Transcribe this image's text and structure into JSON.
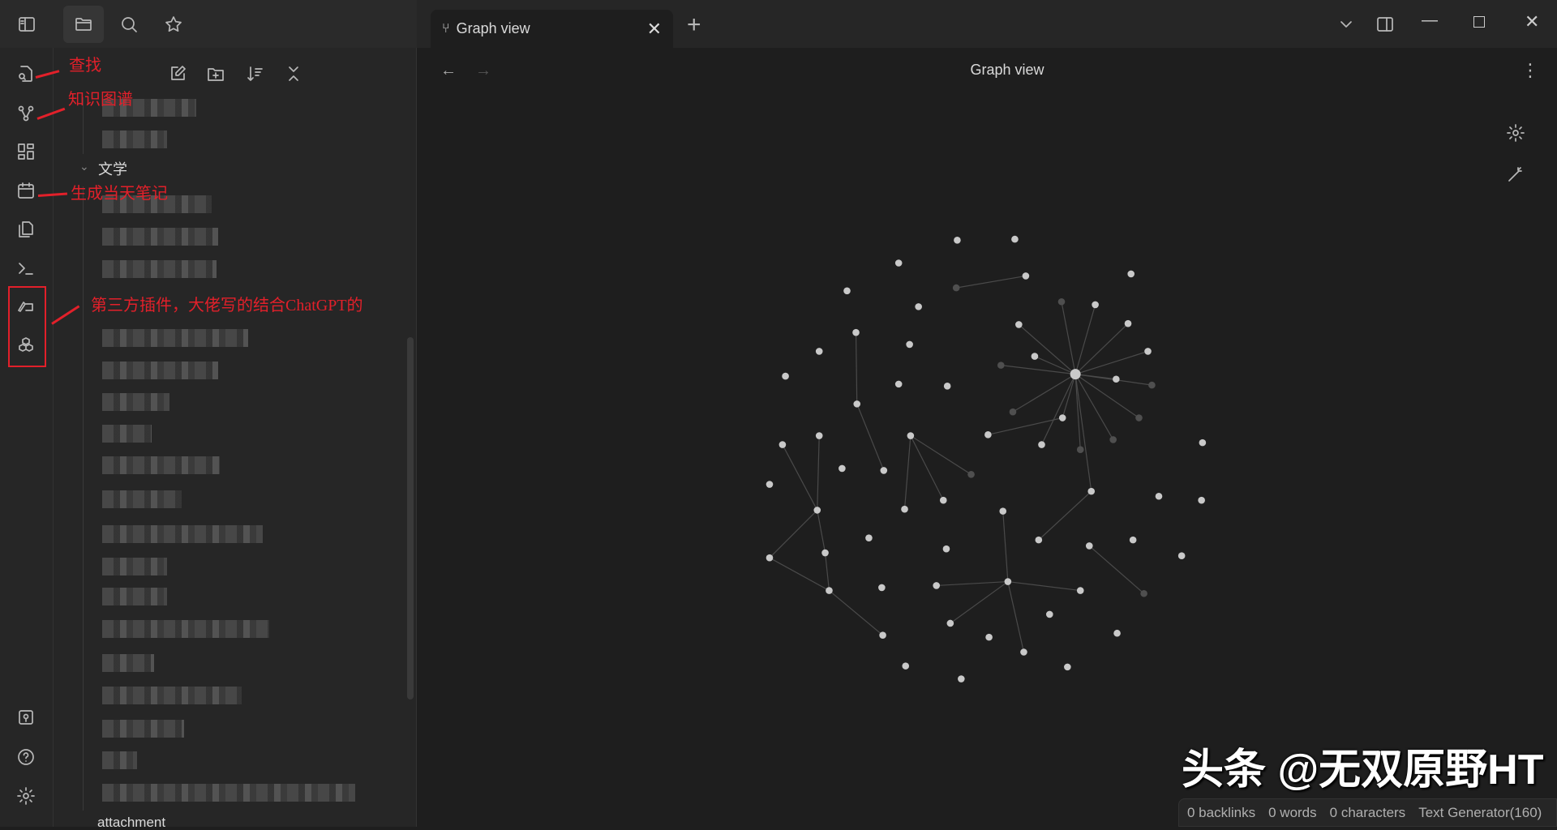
{
  "top": {
    "tab_title": "Graph view",
    "new_tab": "+"
  },
  "view": {
    "title": "Graph view"
  },
  "file_panel": {
    "folder": "文学",
    "folder2": "attachment"
  },
  "annotations": {
    "search": "查找",
    "graph": "知识图谱",
    "daily": "生成当天笔记",
    "plugin": "第三方插件，大佬写的结合ChatGPT的"
  },
  "status": {
    "backlinks": "0 backlinks",
    "words": "0 words",
    "characters": "0 characters",
    "plugin": "Text Generator(160)"
  },
  "watermark": "头条 @无双原野HT",
  "colors": {
    "accent_annotation": "#e2202a",
    "background": "#1e1e1e"
  }
}
